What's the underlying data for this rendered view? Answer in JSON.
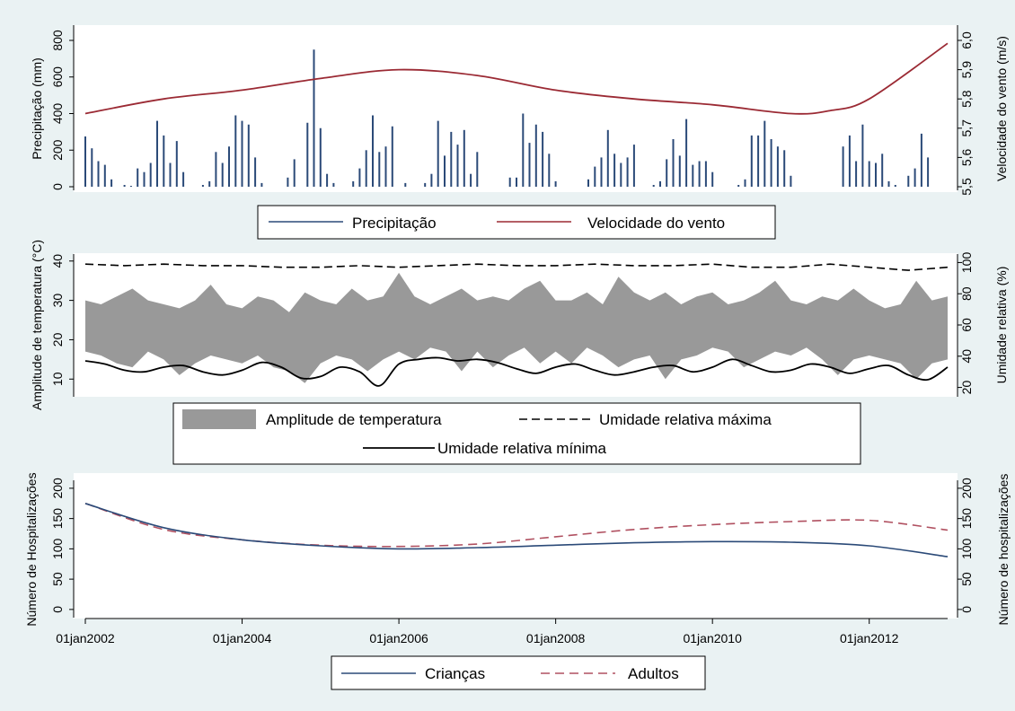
{
  "chart_data": [
    {
      "type": "bar+line",
      "left_ylabel": "Precipitação (mm)",
      "right_ylabel": "Velocidade do vento (m/s)",
      "left_ylim": [
        0,
        800
      ],
      "left_yticks": [
        0,
        200,
        400,
        600,
        800
      ],
      "right_ylim": [
        5.5,
        6.0
      ],
      "right_yticks": [
        5.5,
        5.6,
        5.7,
        5.8,
        5.9,
        6.0
      ],
      "right_tick_labels": [
        "5,5",
        "5,6",
        "5,7",
        "5,8",
        "5,9",
        "6,0"
      ],
      "xlim": [
        2002.0,
        2013.0
      ],
      "legend": [
        "Precipitação",
        "Velocidade do vento"
      ],
      "colors": {
        "precip": "#2b4a78",
        "wind": "#9b2a34"
      },
      "series": [
        {
          "name": "Precipitação",
          "x_start": 2002.0,
          "x_step": 0.08333,
          "values": [
            275,
            210,
            140,
            120,
            40,
            0,
            10,
            5,
            100,
            80,
            130,
            360,
            280,
            130,
            250,
            80,
            0,
            0,
            10,
            30,
            190,
            130,
            220,
            390,
            360,
            340,
            160,
            20,
            0,
            0,
            0,
            50,
            150,
            0,
            350,
            750,
            320,
            70,
            20,
            0,
            0,
            30,
            100,
            200,
            390,
            190,
            220,
            330,
            0,
            20,
            0,
            0,
            20,
            70,
            360,
            170,
            300,
            230,
            310,
            70,
            190,
            0,
            0,
            0,
            0,
            50,
            50,
            400,
            240,
            340,
            300,
            180,
            30,
            0,
            0,
            0,
            0,
            40,
            110,
            160,
            310,
            180,
            130,
            160,
            230,
            0,
            0,
            10,
            30,
            150,
            260,
            170,
            370,
            120,
            140,
            140,
            80,
            0,
            0,
            0,
            10,
            40,
            280,
            280,
            360,
            260,
            220,
            200,
            60,
            0,
            0,
            0,
            0,
            0,
            0,
            0,
            220,
            280,
            140,
            340,
            140,
            130,
            180,
            30,
            10,
            0,
            60,
            100,
            290,
            160
          ]
        },
        {
          "name": "Velocidade do vento",
          "x": [
            2002.0,
            2003.0,
            2004.0,
            2005.0,
            2006.0,
            2007.0,
            2008.0,
            2009.0,
            2010.0,
            2011.0,
            2011.5,
            2012.0,
            2013.0
          ],
          "values": [
            5.75,
            5.8,
            5.83,
            5.87,
            5.9,
            5.88,
            5.83,
            5.8,
            5.78,
            5.75,
            5.76,
            5.8,
            5.99
          ]
        }
      ]
    },
    {
      "type": "area+line",
      "left_ylabel": "Amplitude de temperatura (°C)",
      "right_ylabel": "Umidade relativa (%)",
      "left_ylim": [
        5.5,
        42
      ],
      "left_yticks": [
        10,
        20,
        30,
        40
      ],
      "right_ylim": [
        14,
        106
      ],
      "right_yticks": [
        20,
        40,
        60,
        80,
        100
      ],
      "xlim": [
        2002.0,
        2013.0
      ],
      "legend": [
        "Amplitude de temperatura",
        "Umidade relativa máxima",
        "Umidade relativa mínima"
      ],
      "colors": {
        "band": "#999999",
        "lines": "#000000"
      },
      "series": [
        {
          "name": "Amplitude de temperatura",
          "x": [
            2002.0,
            2002.2,
            2002.4,
            2002.6,
            2002.8,
            2003.0,
            2003.2,
            2003.4,
            2003.6,
            2003.8,
            2004.0,
            2004.2,
            2004.4,
            2004.6,
            2004.8,
            2005.0,
            2005.2,
            2005.4,
            2005.6,
            2005.8,
            2006.0,
            2006.2,
            2006.4,
            2006.6,
            2006.8,
            2007.0,
            2007.2,
            2007.4,
            2007.6,
            2007.8,
            2008.0,
            2008.2,
            2008.4,
            2008.6,
            2008.8,
            2009.0,
            2009.2,
            2009.4,
            2009.6,
            2009.8,
            2010.0,
            2010.2,
            2010.4,
            2010.6,
            2010.8,
            2011.0,
            2011.2,
            2011.4,
            2011.6,
            2011.8,
            2012.0,
            2012.2,
            2012.4,
            2012.6,
            2012.8,
            2013.0
          ],
          "upper": [
            30,
            29,
            31,
            33,
            30,
            29,
            28,
            30,
            34,
            29,
            28,
            31,
            30,
            27,
            32,
            30,
            29,
            33,
            30,
            31,
            37,
            31,
            29,
            31,
            33,
            30,
            31,
            30,
            33,
            35,
            30,
            30,
            32,
            29,
            36,
            32,
            30,
            32,
            29,
            31,
            32,
            29,
            30,
            32,
            35,
            30,
            29,
            31,
            30,
            33,
            30,
            28,
            29,
            35,
            30,
            31
          ],
          "lower": [
            17,
            16,
            14,
            13,
            17,
            15,
            11,
            14,
            16,
            15,
            14,
            16,
            13,
            12,
            9,
            14,
            16,
            15,
            12,
            15,
            17,
            15,
            18,
            17,
            12,
            17,
            13,
            16,
            18,
            14,
            17,
            14,
            18,
            16,
            13,
            15,
            16,
            10,
            15,
            16,
            18,
            17,
            13,
            15,
            17,
            16,
            18,
            15,
            11,
            15,
            16,
            15,
            14,
            10,
            14,
            15
          ]
        },
        {
          "name": "Umidade relativa máxima",
          "x": [
            2002.0,
            2002.5,
            2003.0,
            2003.5,
            2004.0,
            2004.5,
            2005.0,
            2005.5,
            2006.0,
            2006.5,
            2007.0,
            2007.5,
            2008.0,
            2008.5,
            2009.0,
            2009.5,
            2010.0,
            2010.5,
            2011.0,
            2011.5,
            2012.0,
            2012.5,
            2013.0
          ],
          "values": [
            99,
            98,
            99,
            98,
            98,
            97,
            97,
            98,
            97,
            98,
            99,
            98,
            98,
            99,
            98,
            98,
            99,
            97,
            97,
            99,
            97,
            95,
            97
          ]
        },
        {
          "name": "Umidade relativa mínima",
          "x": [
            2002.0,
            2002.25,
            2002.5,
            2002.75,
            2003.0,
            2003.25,
            2003.5,
            2003.75,
            2004.0,
            2004.25,
            2004.5,
            2004.75,
            2005.0,
            2005.25,
            2005.5,
            2005.75,
            2006.0,
            2006.25,
            2006.5,
            2006.75,
            2007.0,
            2007.25,
            2007.5,
            2007.75,
            2008.0,
            2008.25,
            2008.5,
            2008.75,
            2009.0,
            2009.25,
            2009.5,
            2009.75,
            2010.0,
            2010.25,
            2010.5,
            2010.75,
            2011.0,
            2011.25,
            2011.5,
            2011.75,
            2012.0,
            2012.25,
            2012.5,
            2012.75,
            2013.0
          ],
          "values": [
            37,
            35,
            31,
            30,
            33,
            34,
            30,
            28,
            31,
            36,
            33,
            26,
            27,
            33,
            30,
            21,
            35,
            38,
            39,
            37,
            38,
            36,
            32,
            29,
            33,
            35,
            31,
            28,
            30,
            33,
            34,
            30,
            33,
            38,
            34,
            30,
            31,
            35,
            33,
            29,
            32,
            34,
            28,
            25,
            33
          ]
        }
      ]
    },
    {
      "type": "line",
      "left_ylabel": "Número de Hospitalizações",
      "right_ylabel": "Número de hospitalizações",
      "left_ylim": [
        -15,
        225
      ],
      "left_yticks": [
        0,
        50,
        100,
        150,
        200
      ],
      "xlim": [
        2002.0,
        2013.0
      ],
      "xticks": [
        2002,
        2004,
        2006,
        2008,
        2010,
        2012
      ],
      "xtick_labels": [
        "01jan2002",
        "01jan2004",
        "01jan2006",
        "01jan2008",
        "01jan2010",
        "01jan2012"
      ],
      "legend": [
        "Crianças",
        "Adultos"
      ],
      "colors": {
        "criancas": "#2b4a78",
        "adultos": "#b05060"
      },
      "series": [
        {
          "name": "Crianças",
          "x": [
            2002.0,
            2003.0,
            2004.0,
            2005.0,
            2006.0,
            2007.0,
            2008.0,
            2009.0,
            2010.0,
            2011.0,
            2012.0,
            2013.0
          ],
          "values": [
            175,
            135,
            115,
            105,
            100,
            102,
            106,
            110,
            112,
            111,
            105,
            87
          ]
        },
        {
          "name": "Adultos",
          "x": [
            2002.0,
            2003.0,
            2004.0,
            2005.0,
            2006.0,
            2007.0,
            2008.0,
            2009.0,
            2010.0,
            2011.0,
            2012.0,
            2013.0
          ],
          "values": [
            175,
            132,
            115,
            106,
            104,
            108,
            120,
            132,
            140,
            145,
            147,
            131
          ]
        }
      ]
    }
  ]
}
